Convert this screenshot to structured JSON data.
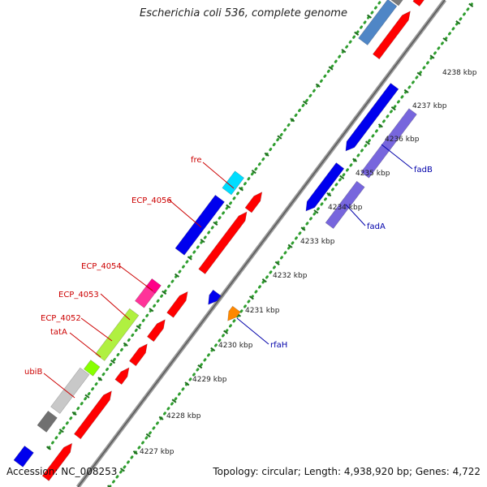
{
  "title": "Escherichia coli 536, complete genome",
  "accession": "Accession: NC_008253",
  "summary": "Topology: circular; Length: 4,938,920 bp; Genes: 4,722",
  "colors": {
    "backbone": "#8c8c8c",
    "scale_dots": "#2f9e2f",
    "scale_ticks": "#1f6e1f",
    "cds_forward": "#ff0000",
    "label_red": "#cc0000",
    "label_blue": "#0000aa"
  },
  "scale_labels": [
    {
      "name": "tick-4227",
      "text": "4227 kbp"
    },
    {
      "name": "tick-4228",
      "text": "4228 kbp"
    },
    {
      "name": "tick-4229",
      "text": "4229 kbp"
    },
    {
      "name": "tick-4230",
      "text": "4230 kbp"
    },
    {
      "name": "tick-4231",
      "text": "4231 kbp"
    },
    {
      "name": "tick-4232",
      "text": "4232 kbp"
    },
    {
      "name": "tick-4233",
      "text": "4233 kbp"
    },
    {
      "name": "tick-4234",
      "text": "4234 kbp"
    },
    {
      "name": "tick-4235",
      "text": "4235 kbp"
    },
    {
      "name": "tick-4236",
      "text": "4236 kbp"
    },
    {
      "name": "tick-4237",
      "text": "4237 kbp"
    },
    {
      "name": "tick-4238",
      "text": "4238 kbp"
    }
  ],
  "gene_labels": [
    {
      "name": "label-fre",
      "text": "fre",
      "color": "#cc0000"
    },
    {
      "name": "label-ecp-4056",
      "text": "ECP_4056",
      "color": "#cc0000"
    },
    {
      "name": "label-ecp-4054",
      "text": "ECP_4054",
      "color": "#cc0000"
    },
    {
      "name": "label-ecp-4053",
      "text": "ECP_4053",
      "color": "#cc0000"
    },
    {
      "name": "label-ecp-4052",
      "text": "ECP_4052",
      "color": "#cc0000"
    },
    {
      "name": "label-tata",
      "text": "tatA",
      "color": "#cc0000"
    },
    {
      "name": "label-ubib",
      "text": "ubiB",
      "color": "#cc0000"
    },
    {
      "name": "label-fadb",
      "text": "fadB",
      "color": "#0000aa"
    },
    {
      "name": "label-fada",
      "text": "fadA",
      "color": "#0000aa"
    },
    {
      "name": "label-rfah",
      "text": "rfaH",
      "color": "#0000aa"
    }
  ]
}
